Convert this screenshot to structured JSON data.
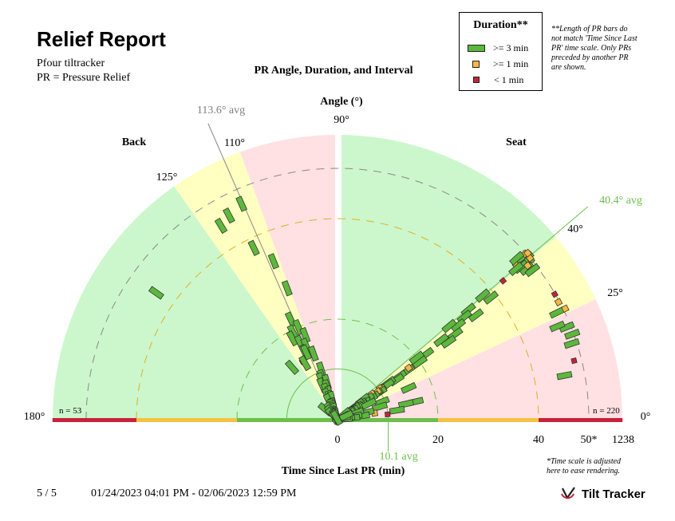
{
  "report": {
    "title": "Relief Report",
    "subtitle1": "Pfour tiltracker",
    "subtitle2": "PR = Pressure Relief",
    "page_label": "5 / 5",
    "date_range": "01/24/2023 04:01 PM - 02/06/2023 12:59 PM",
    "brand": "Tilt Tracker",
    "brand_icon": "checkmark-logo-icon"
  },
  "legend": {
    "title": "Duration**",
    "items": [
      {
        "label": ">= 3 min",
        "color": "#5cb83c"
      },
      {
        "label": ">= 1 min",
        "color": "#f5b942"
      },
      {
        "label": "<  1 min",
        "color": "#c8213a"
      }
    ]
  },
  "notes": {
    "bars": "**Length of PR bars do not match 'Time Since Last PR' time scale. Only PRs preceded by another PR are shown.",
    "time_scale": "*Time scale is adjusted here to ease rendering."
  },
  "chart_data": {
    "type": "polar-scatter",
    "title": "PR Angle, Duration, and Interval",
    "angle_label": "Angle (°)",
    "radius_label": "Time Since Last PR (min)",
    "angle_range": [
      0,
      180
    ],
    "radius_ticks": [
      "0",
      "20",
      "40",
      "50*",
      "1238"
    ],
    "angle_ticks_right": [
      "0°",
      "25°",
      "40°"
    ],
    "angle_ticks_left": [
      "90°",
      "110°",
      "125°",
      "180°"
    ],
    "groups": {
      "back": {
        "label": "Back",
        "n": "n = 53",
        "avg_angle_label": "113.6° avg",
        "avg_angle": 113.6
      },
      "seat": {
        "label": "Seat",
        "n": "n = 220",
        "avg_angle_label": "40.4° avg",
        "avg_angle": 40.4
      }
    },
    "avg_interval_label": "10.1 avg",
    "avg_interval": 10.1,
    "zone_colors": {
      "green": "#ccf7cc",
      "yellow": "#ffffc2",
      "pink": "#ffe1e3",
      "red": "#c8213a",
      "orange": "#f5c242",
      "lgreen": "#6cc04a"
    },
    "seat_points": [
      [
        40.5,
        49.5,
        3
      ],
      [
        41,
        48.5,
        3
      ],
      [
        39.5,
        49,
        3
      ],
      [
        40,
        48,
        3
      ],
      [
        40.8,
        47,
        2
      ],
      [
        39.8,
        47.5,
        3
      ],
      [
        40.2,
        46.5,
        3
      ],
      [
        41.5,
        49.8,
        2
      ],
      [
        38.5,
        48.2,
        3
      ],
      [
        42,
        48,
        3
      ],
      [
        40,
        50,
        2
      ],
      [
        39,
        48.7,
        2
      ],
      [
        41.2,
        50.3,
        2
      ],
      [
        37.5,
        48.9,
        3
      ],
      [
        22,
        49.2,
        3
      ],
      [
        23,
        47.5,
        3
      ],
      [
        11,
        46,
        3
      ],
      [
        28,
        49.8,
        2
      ],
      [
        20,
        49.7,
        3
      ],
      [
        14,
        48.5,
        1
      ],
      [
        30,
        49.9,
        1
      ],
      [
        26,
        48.6,
        3
      ],
      [
        18,
        49,
        3
      ],
      [
        26,
        50.4,
        2
      ],
      [
        40,
        43,
        1
      ],
      [
        40.5,
        38,
        3
      ],
      [
        38.5,
        39,
        3
      ],
      [
        37,
        34.5,
        3
      ],
      [
        40,
        34,
        3
      ],
      [
        39,
        32.5,
        3
      ],
      [
        38,
        30.5,
        3
      ],
      [
        36,
        29,
        3
      ],
      [
        40,
        29,
        3
      ],
      [
        35,
        27,
        3
      ],
      [
        37.5,
        26,
        3
      ],
      [
        36.5,
        22,
        3
      ],
      [
        35,
        20,
        3
      ],
      [
        38,
        20,
        3
      ],
      [
        35,
        17,
        3
      ],
      [
        36,
        17.5,
        2
      ],
      [
        35,
        15,
        3
      ],
      [
        34,
        14.2,
        3
      ],
      [
        36,
        12.5,
        3
      ],
      [
        35,
        12,
        3
      ],
      [
        34.5,
        11,
        2
      ],
      [
        36.5,
        10.5,
        2
      ],
      [
        33,
        10,
        3
      ],
      [
        34,
        9.2,
        3
      ],
      [
        35,
        9.8,
        2
      ],
      [
        33,
        8.3,
        3
      ],
      [
        37,
        8.6,
        2
      ],
      [
        32,
        7.7,
        3
      ],
      [
        35,
        7.2,
        3
      ],
      [
        33,
        6.6,
        2
      ],
      [
        38,
        6.4,
        3
      ],
      [
        32,
        6.2,
        3
      ],
      [
        36,
        5.6,
        2
      ],
      [
        34,
        5.5,
        3
      ],
      [
        31,
        5.4,
        3
      ],
      [
        37,
        4.9,
        3
      ],
      [
        34,
        4.8,
        2
      ],
      [
        33,
        4.5,
        3
      ],
      [
        30,
        4.6,
        3
      ],
      [
        35,
        3.8,
        3
      ],
      [
        32,
        3.7,
        2
      ],
      [
        34,
        3.2,
        3
      ],
      [
        31,
        3.3,
        3
      ],
      [
        37,
        2.9,
        2
      ],
      [
        33,
        2.7,
        3
      ],
      [
        35,
        2.3,
        3
      ],
      [
        30,
        2.5,
        3
      ],
      [
        36,
        1.9,
        3
      ],
      [
        32,
        1.8,
        2
      ],
      [
        34,
        1.5,
        3
      ],
      [
        31,
        1.3,
        3
      ],
      [
        36,
        1.1,
        3
      ],
      [
        33,
        1.0,
        2
      ],
      [
        35,
        0.8,
        3
      ],
      [
        30,
        0.9,
        3
      ],
      [
        38,
        0.7,
        3
      ],
      [
        34,
        0.5,
        3
      ],
      [
        32,
        0.6,
        2
      ],
      [
        40,
        1.7,
        3
      ],
      [
        28,
        1.2,
        3
      ],
      [
        24,
        15.5,
        3
      ],
      [
        13,
        16,
        3
      ],
      [
        13,
        14,
        3
      ],
      [
        9,
        12,
        3
      ],
      [
        6,
        10,
        1
      ],
      [
        22,
        9.5,
        3
      ],
      [
        17,
        8.8,
        3
      ],
      [
        10,
        7.5,
        2
      ],
      [
        27,
        7,
        3
      ],
      [
        14,
        6,
        3
      ],
      [
        9,
        5,
        3
      ],
      [
        20,
        4,
        3
      ],
      [
        12,
        3.5,
        3
      ],
      [
        7,
        3,
        3
      ],
      [
        17,
        2.5,
        2
      ],
      [
        10,
        2,
        3
      ],
      [
        5,
        1.5,
        3
      ],
      [
        15,
        1.2,
        3
      ],
      [
        25,
        1.8,
        3
      ]
    ],
    "back_points": [
      [
        114,
        47,
        3
      ],
      [
        118,
        46,
        3
      ],
      [
        121,
        45,
        3
      ],
      [
        145,
        44,
        3
      ],
      [
        116,
        38,
        3
      ],
      [
        112,
        34,
        3
      ],
      [
        111,
        28,
        3
      ],
      [
        115,
        22,
        3
      ],
      [
        113,
        20,
        3
      ],
      [
        117,
        19.5,
        3
      ],
      [
        119,
        18.5,
        3
      ],
      [
        111,
        18,
        3
      ],
      [
        116,
        17,
        3
      ],
      [
        113,
        16,
        3
      ],
      [
        116,
        15,
        3
      ],
      [
        110,
        14,
        3
      ],
      [
        115,
        14.8,
        3
      ],
      [
        121,
        13.5,
        1
      ],
      [
        120,
        13,
        3
      ],
      [
        131,
        13.8,
        3
      ],
      [
        108,
        10.5,
        3
      ],
      [
        110,
        9,
        3
      ],
      [
        112,
        8.5,
        3
      ],
      [
        106,
        7.8,
        3
      ],
      [
        114,
        7.5,
        3
      ],
      [
        108,
        6.8,
        3
      ],
      [
        111,
        6.2,
        3
      ],
      [
        107,
        5.5,
        3
      ],
      [
        113,
        5.2,
        3
      ],
      [
        109,
        4.6,
        3
      ],
      [
        105,
        4.3,
        3
      ],
      [
        115,
        4.1,
        3
      ],
      [
        110,
        3.4,
        2
      ],
      [
        107,
        3.0,
        3
      ],
      [
        112,
        2.9,
        3
      ],
      [
        108,
        2.5,
        3
      ],
      [
        114,
        2.2,
        3
      ],
      [
        106,
        1.9,
        3
      ],
      [
        110,
        1.7,
        2
      ],
      [
        116,
        1.4,
        3
      ],
      [
        108,
        1.2,
        3
      ],
      [
        112,
        1.0,
        3
      ],
      [
        104,
        0.8,
        3
      ],
      [
        118,
        0.7,
        3
      ],
      [
        110,
        0.5,
        3
      ],
      [
        140,
        3.2,
        3
      ],
      [
        125,
        2.5,
        3
      ],
      [
        130,
        2,
        3
      ],
      [
        135,
        1.5,
        3
      ],
      [
        128,
        1,
        2
      ],
      [
        122,
        0.8,
        3
      ],
      [
        132,
        0.6,
        3
      ],
      [
        120,
        0.4,
        3
      ]
    ]
  }
}
